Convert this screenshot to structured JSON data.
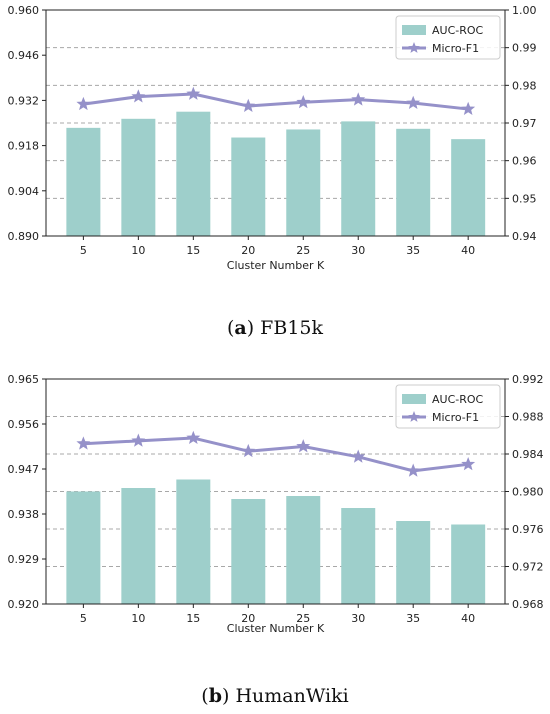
{
  "colors": {
    "bar": "#9ecfcb",
    "line": "#9591c9",
    "grid": "#a8a8a8",
    "axis": "#222222"
  },
  "chart_data": [
    {
      "type": "bar",
      "xlabel": "Cluster Number K",
      "categories": [
        "5",
        "10",
        "15",
        "20",
        "25",
        "30",
        "35",
        "40"
      ],
      "series": [
        {
          "name": "AUC-ROC",
          "type": "bar",
          "axis": "left",
          "values": [
            0.9235,
            0.9263,
            0.9285,
            0.9205,
            0.923,
            0.9255,
            0.9232,
            0.92
          ]
        },
        {
          "name": "Micro-F1",
          "type": "line",
          "axis": "right",
          "marker": "star",
          "values": [
            0.975,
            0.977,
            0.9777,
            0.9745,
            0.9755,
            0.9762,
            0.9753,
            0.9737
          ]
        }
      ],
      "ylim_left": [
        0.89,
        0.96
      ],
      "yticks_left": [
        "0.890",
        "0.904",
        "0.918",
        "0.932",
        "0.946",
        "0.960"
      ],
      "ylim_right": [
        0.94,
        1.0
      ],
      "yticks_right": [
        "0.94",
        "0.95",
        "0.96",
        "0.97",
        "0.98",
        "0.99",
        "1.00"
      ],
      "grid": "dashed horizontal at right-axis ticks",
      "legend": "top-right",
      "caption_label": "a",
      "caption_text": "FB15k"
    },
    {
      "type": "bar",
      "xlabel": "Cluster Number K",
      "categories": [
        "5",
        "10",
        "15",
        "20",
        "25",
        "30",
        "35",
        "40"
      ],
      "series": [
        {
          "name": "AUC-ROC",
          "type": "bar",
          "axis": "left",
          "values": [
            0.9425,
            0.9432,
            0.9449,
            0.941,
            0.9416,
            0.9392,
            0.9366,
            0.9359
          ]
        },
        {
          "name": "Micro-F1",
          "type": "line",
          "axis": "right",
          "marker": "star",
          "values": [
            0.9851,
            0.9854,
            0.9857,
            0.9843,
            0.9848,
            0.9837,
            0.9822,
            0.9829
          ]
        }
      ],
      "ylim_left": [
        0.92,
        0.965
      ],
      "yticks_left": [
        "0.920",
        "0.929",
        "0.938",
        "0.947",
        "0.956",
        "0.965"
      ],
      "ylim_right": [
        0.968,
        0.992
      ],
      "yticks_right": [
        "0.968",
        "0.972",
        "0.976",
        "0.980",
        "0.984",
        "0.988",
        "0.992"
      ],
      "grid": "dashed horizontal at right-axis ticks",
      "legend": "top-right",
      "caption_label": "b",
      "caption_text": "HumanWiki"
    }
  ]
}
